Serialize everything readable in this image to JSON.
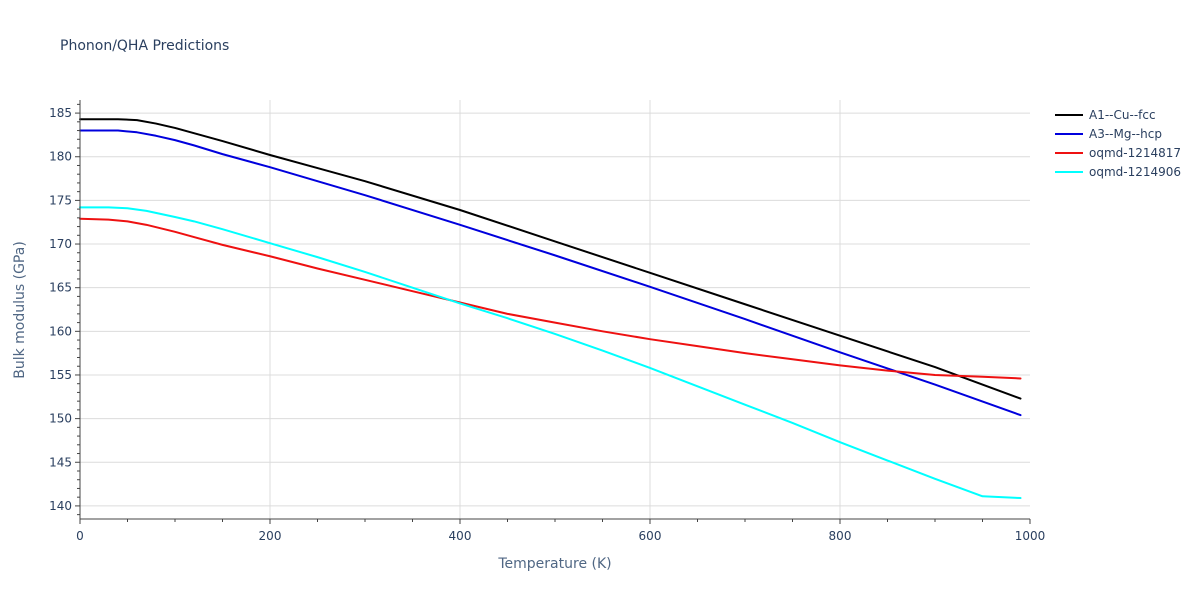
{
  "chart_data": {
    "type": "line",
    "title": "Phonon/QHA Predictions",
    "xlabel": "Temperature (K)",
    "ylabel": "Bulk modulus (GPa)",
    "xlim": [
      0,
      1000
    ],
    "ylim": [
      138.5,
      186.5
    ],
    "xticks": [
      0,
      200,
      400,
      600,
      800,
      1000
    ],
    "yticks": [
      140,
      145,
      150,
      155,
      160,
      165,
      170,
      175,
      180,
      185
    ],
    "grid": true,
    "legend_position": "right",
    "series": [
      {
        "name": "A1--Cu--fcc",
        "color": "#000000",
        "x": [
          0,
          40,
          60,
          80,
          100,
          120,
          150,
          200,
          250,
          300,
          400,
          500,
          600,
          700,
          800,
          900,
          990
        ],
        "y": [
          184.3,
          184.3,
          184.2,
          183.8,
          183.3,
          182.7,
          181.8,
          180.2,
          178.7,
          177.2,
          173.9,
          170.3,
          166.7,
          163.1,
          159.5,
          155.9,
          152.3
        ]
      },
      {
        "name": "A3--Mg--hcp",
        "color": "#0000dd",
        "x": [
          0,
          40,
          60,
          80,
          100,
          120,
          150,
          200,
          250,
          300,
          400,
          500,
          600,
          700,
          800,
          900,
          990
        ],
        "y": [
          183.0,
          183.0,
          182.8,
          182.4,
          181.9,
          181.3,
          180.3,
          178.8,
          177.2,
          175.6,
          172.2,
          168.7,
          165.1,
          161.4,
          157.6,
          153.9,
          150.4
        ]
      },
      {
        "name": "oqmd-1214817",
        "color": "#ee1111",
        "x": [
          0,
          30,
          50,
          70,
          100,
          120,
          150,
          200,
          250,
          300,
          350,
          400,
          450,
          500,
          550,
          600,
          650,
          700,
          750,
          800,
          850,
          900,
          950,
          990
        ],
        "y": [
          172.9,
          172.8,
          172.6,
          172.2,
          171.4,
          170.8,
          169.9,
          168.6,
          167.2,
          165.9,
          164.6,
          163.3,
          162.0,
          161.0,
          160.0,
          159.1,
          158.3,
          157.5,
          156.8,
          156.1,
          155.5,
          155.0,
          154.8,
          154.6
        ]
      },
      {
        "name": "oqmd-1214906",
        "color": "#00ffff",
        "x": [
          0,
          30,
          50,
          70,
          100,
          120,
          150,
          200,
          250,
          300,
          350,
          400,
          450,
          500,
          550,
          600,
          650,
          700,
          750,
          800,
          850,
          900,
          950,
          990
        ],
        "y": [
          174.2,
          174.2,
          174.1,
          173.8,
          173.1,
          172.6,
          171.7,
          170.1,
          168.5,
          166.8,
          165.0,
          163.2,
          161.5,
          159.7,
          157.8,
          155.8,
          153.7,
          151.6,
          149.5,
          147.3,
          145.2,
          143.1,
          141.1,
          140.9
        ]
      }
    ]
  }
}
